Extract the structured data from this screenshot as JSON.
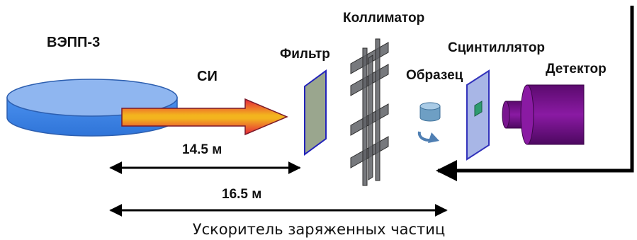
{
  "labels": {
    "vepp": "ВЭПП-3",
    "si": "СИ",
    "filter": "Фильтр",
    "collimator": "Коллиматор",
    "sample": "Образец",
    "scintillator": "Сцинтиллятор",
    "detector": "Детектор"
  },
  "distances": {
    "d1": "14.5 м",
    "d2": "16.5 м"
  },
  "caption": "Ускоритель заряженных частиц",
  "colors": {
    "ring_top": "#8fb6f0",
    "ring_side": "#3d86e8",
    "ring_outline": "#2d5fb0",
    "beam_red": "#e6233a",
    "beam_gold": "#f3b41e",
    "beam_outline": "#7a1a2a",
    "filter_fill": "#9aa68e",
    "filter_edge": "#2222bb",
    "collimator_blade": "#5f6166",
    "sample_fill": "#6e9fc4",
    "rotation_arrow": "#4f7fb3",
    "scint_fill": "#a8b6e6",
    "scint_edge": "#3333bb",
    "scint_core": "#2e9b6f",
    "detector_dark": "#5b0a6e",
    "detector_mid": "#8a1aa3",
    "line": "#000000"
  }
}
